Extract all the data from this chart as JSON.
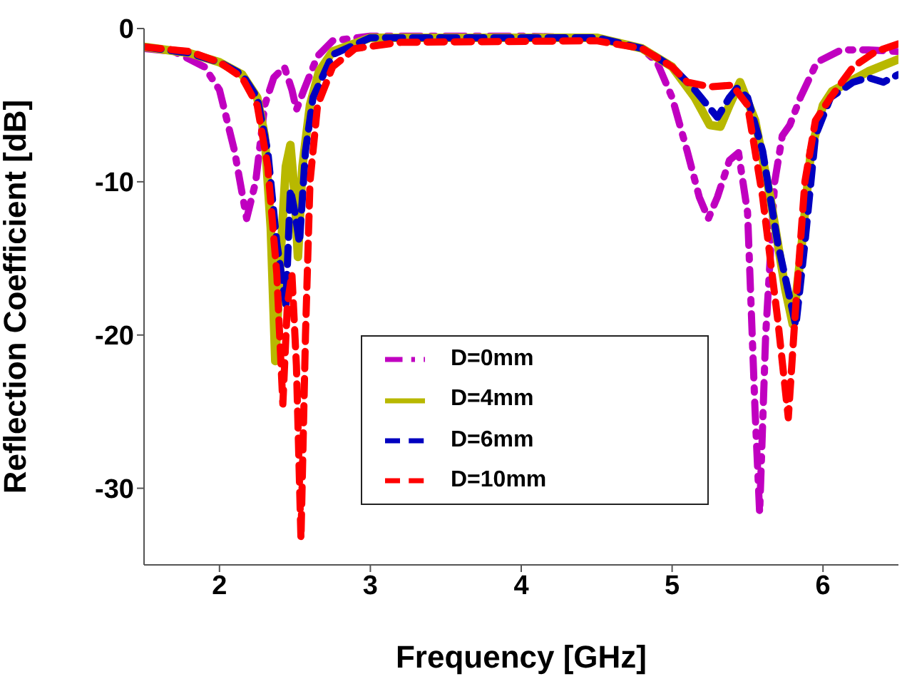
{
  "chart_data": {
    "type": "line",
    "xlabel": "Frequency [GHz]",
    "ylabel": "Reflection Coefficient [dB]",
    "xlim": [
      1.5,
      6.5
    ],
    "xticks": [
      2,
      3,
      4,
      5,
      6
    ],
    "ylim": [
      -35,
      0
    ],
    "yticks": [
      0,
      -10,
      -20,
      -30
    ],
    "grid": false,
    "legend": "center",
    "marker": "none",
    "series": [
      {
        "name": "D=0mm",
        "color": "#c000c0",
        "line_style": "dashdot",
        "x": [
          1.5,
          1.7,
          1.9,
          2.0,
          2.1,
          2.18,
          2.24,
          2.3,
          2.36,
          2.43,
          2.48,
          2.51,
          2.56,
          2.65,
          2.75,
          3.0,
          4.0,
          4.5,
          4.8,
          4.9,
          5.0,
          5.1,
          5.18,
          5.24,
          5.3,
          5.38,
          5.44,
          5.5,
          5.55,
          5.58,
          5.62,
          5.68,
          5.73,
          5.78,
          5.85,
          5.96,
          6.12,
          6.3,
          6.5
        ],
        "values": [
          -1.3,
          -1.5,
          -2.5,
          -4,
          -8,
          -12.4,
          -10,
          -5,
          -3.2,
          -2.5,
          -4,
          -5.3,
          -4,
          -1.8,
          -0.8,
          -0.5,
          -0.5,
          -0.6,
          -1.3,
          -2.2,
          -4.5,
          -8,
          -11,
          -12.4,
          -11,
          -8.6,
          -8.1,
          -12,
          -25,
          -31.6,
          -20,
          -10,
          -7,
          -6.3,
          -4.5,
          -2.2,
          -1.4,
          -1.4,
          -1.5
        ]
      },
      {
        "name": "D=4mm",
        "color": "#b8b800",
        "line_style": "solid",
        "x": [
          1.5,
          1.8,
          2.0,
          2.15,
          2.25,
          2.3,
          2.34,
          2.37,
          2.41,
          2.44,
          2.47,
          2.5,
          2.52,
          2.55,
          2.6,
          2.66,
          2.75,
          3.0,
          4.5,
          4.8,
          5.0,
          5.15,
          5.25,
          5.32,
          5.38,
          5.45,
          5.55,
          5.65,
          5.75,
          5.8,
          5.85,
          5.92,
          6.0,
          6.06,
          6.3,
          6.5
        ],
        "values": [
          -1.2,
          -1.6,
          -2.2,
          -3,
          -4.5,
          -7,
          -13,
          -21.7,
          -14,
          -9,
          -7.6,
          -11,
          -14.9,
          -9,
          -5,
          -2.8,
          -1.5,
          -0.6,
          -0.6,
          -1.3,
          -2.5,
          -4.5,
          -6.3,
          -6.4,
          -5,
          -3.5,
          -6,
          -11,
          -17,
          -19.3,
          -15,
          -8,
          -5,
          -4.1,
          -2.8,
          -2
        ]
      },
      {
        "name": "D=6mm",
        "color": "#0000c0",
        "line_style": "dashed",
        "x": [
          1.5,
          1.8,
          2.0,
          2.15,
          2.25,
          2.32,
          2.38,
          2.44,
          2.47,
          2.5,
          2.53,
          2.57,
          2.62,
          2.75,
          3.0,
          4.5,
          4.8,
          5.0,
          5.15,
          5.3,
          5.38,
          5.43,
          5.5,
          5.6,
          5.7,
          5.82,
          5.88,
          5.95,
          6.05,
          6.2,
          6.3,
          6.4,
          6.5
        ],
        "values": [
          -1.2,
          -1.6,
          -2.2,
          -3,
          -4.5,
          -8,
          -14,
          -18,
          -10.5,
          -12,
          -14,
          -8,
          -4.5,
          -1.7,
          -0.6,
          -0.6,
          -1.3,
          -2.5,
          -4,
          -5.8,
          -4.5,
          -3.9,
          -4.5,
          -8,
          -14,
          -19.4,
          -14,
          -7,
          -4.5,
          -3.5,
          -3.2,
          -3.5,
          -3
        ]
      },
      {
        "name": "D=10mm",
        "color": "#ff0000",
        "line_style": "dashed",
        "x": [
          1.5,
          1.8,
          2.0,
          2.15,
          2.25,
          2.32,
          2.38,
          2.42,
          2.45,
          2.48,
          2.51,
          2.54,
          2.57,
          2.6,
          2.65,
          2.75,
          2.9,
          3.2,
          4.5,
          4.8,
          5.0,
          5.1,
          5.25,
          5.4,
          5.5,
          5.6,
          5.7,
          5.77,
          5.82,
          5.88,
          5.95,
          6.05,
          6.2,
          6.35,
          6.5
        ],
        "values": [
          -1.2,
          -1.5,
          -2.2,
          -3.2,
          -5,
          -9,
          -16,
          -24.5,
          -18,
          -16,
          -22,
          -33.3,
          -20,
          -10,
          -5,
          -2.5,
          -1.3,
          -0.9,
          -0.8,
          -1.3,
          -2.5,
          -3.5,
          -3.8,
          -3.7,
          -5,
          -11,
          -19,
          -25.4,
          -18,
          -10,
          -6,
          -4.5,
          -2.5,
          -1.5,
          -1
        ]
      }
    ]
  }
}
